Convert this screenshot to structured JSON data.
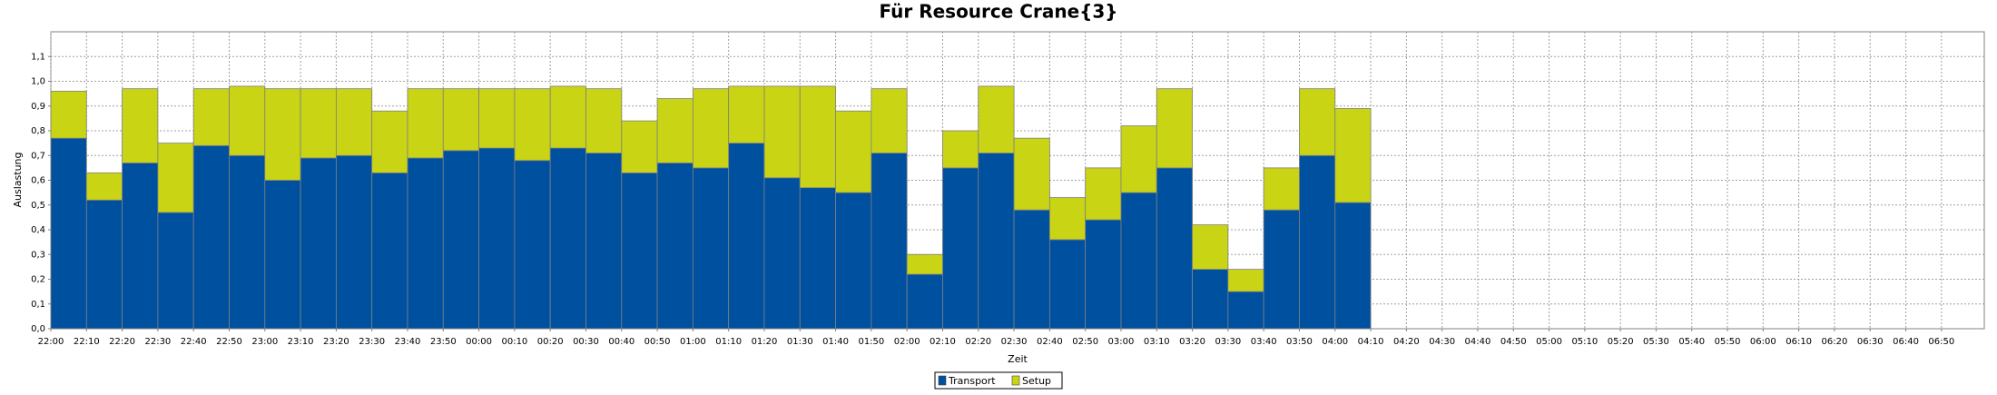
{
  "chart_data": {
    "type": "stacked_bar",
    "title": "Für Resource Crane{3}",
    "x_label": "Zeit",
    "y_label": "Auslastung",
    "categories": [
      "22:00",
      "22:10",
      "22:20",
      "22:30",
      "22:40",
      "22:50",
      "23:00",
      "23:10",
      "23:20",
      "23:30",
      "23:40",
      "23:50",
      "00:00",
      "00:10",
      "00:20",
      "00:30",
      "00:40",
      "00:50",
      "01:00",
      "01:10",
      "01:20",
      "01:30",
      "01:40",
      "01:50",
      "02:00",
      "02:10",
      "02:20",
      "02:30",
      "02:40",
      "02:50",
      "03:00",
      "03:10",
      "03:20",
      "03:30",
      "03:40",
      "03:50",
      "04:00",
      "04:10",
      "04:20",
      "04:30",
      "04:40",
      "04:50",
      "05:00",
      "05:10",
      "05:20",
      "05:30",
      "05:40",
      "05:50",
      "06:00",
      "06:10",
      "06:20",
      "06:30",
      "06:40",
      "06:50"
    ],
    "series": [
      {
        "name": "Transport",
        "color": "#0050a0",
        "values": [
          0.77,
          0.52,
          0.67,
          0.47,
          0.74,
          0.7,
          0.6,
          0.69,
          0.7,
          0.63,
          0.69,
          0.72,
          0.73,
          0.68,
          0.73,
          0.71,
          0.63,
          0.67,
          0.65,
          0.75,
          0.61,
          0.57,
          0.55,
          0.71,
          0.22,
          0.65,
          0.71,
          0.48,
          0.36,
          0.44,
          0.55,
          0.65,
          0.24,
          0.15,
          0.48,
          0.7,
          0.51,
          null,
          null,
          null,
          null,
          null,
          null,
          null,
          null,
          null,
          null,
          null,
          null,
          null,
          null,
          null,
          null,
          null
        ]
      },
      {
        "name": "Setup",
        "color": "#c8d414",
        "values": [
          0.19,
          0.11,
          0.3,
          0.28,
          0.23,
          0.28,
          0.37,
          0.28,
          0.27,
          0.25,
          0.28,
          0.25,
          0.24,
          0.29,
          0.25,
          0.26,
          0.21,
          0.26,
          0.32,
          0.23,
          0.37,
          0.41,
          0.33,
          0.26,
          0.08,
          0.15,
          0.27,
          0.29,
          0.17,
          0.21,
          0.27,
          0.32,
          0.18,
          0.09,
          0.17,
          0.27,
          0.38,
          null,
          null,
          null,
          null,
          null,
          null,
          null,
          null,
          null,
          null,
          null,
          null,
          null,
          null,
          null,
          null,
          null
        ]
      }
    ],
    "ylim": [
      0,
      1.2
    ],
    "yticks": [
      {
        "value": 0,
        "label": "0,0"
      },
      {
        "value": 0.1,
        "label": "0,1"
      },
      {
        "value": 0.2,
        "label": "0,2"
      },
      {
        "value": 0.3,
        "label": "0,3"
      },
      {
        "value": 0.4,
        "label": "0,4"
      },
      {
        "value": 0.5,
        "label": "0,5"
      },
      {
        "value": 0.6,
        "label": "0,6"
      },
      {
        "value": 0.7,
        "label": "0,7"
      },
      {
        "value": 0.8,
        "label": "0,8"
      },
      {
        "value": 0.9,
        "label": "0,9"
      },
      {
        "value": 1.0,
        "label": "1,0"
      },
      {
        "value": 1.1,
        "label": "1,1"
      }
    ],
    "grid": true,
    "legend": "bottom"
  }
}
